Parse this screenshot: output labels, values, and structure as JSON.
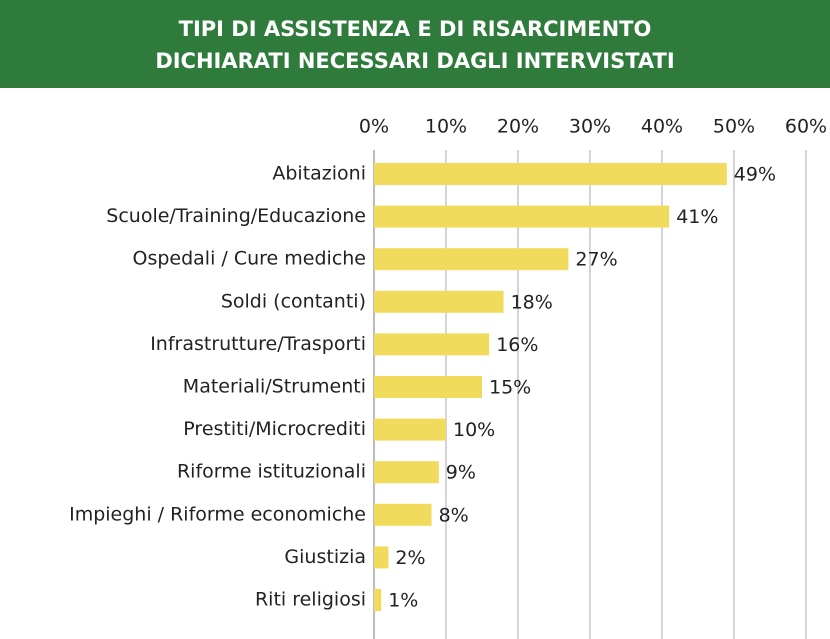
{
  "chart_data": {
    "type": "hbar",
    "title": [
      "TIPI DI ASSISTENZA E DI RISARCIMENTO",
      "DICHIARATI NECESSARI DAGLI INTERVISTATI"
    ],
    "categories": [
      "Abitazioni",
      "Scuole/Training/Educazione",
      "Ospedali / Cure mediche",
      "Soldi (contanti)",
      "Infrastrutture/Trasporti",
      "Materiali/Strumenti",
      "Prestiti/Microcrediti",
      "Riforme istituzionali",
      "Impieghi / Riforme economiche",
      "Giustizia",
      "Riti religiosi"
    ],
    "values": [
      49,
      41,
      27,
      18,
      16,
      15,
      10,
      9,
      8,
      2,
      1
    ],
    "value_labels": [
      "49%",
      "41%",
      "27%",
      "18%",
      "16%",
      "15%",
      "10%",
      "9%",
      "8%",
      "2%",
      "1%"
    ],
    "color": "#f0db5c",
    "xlim": [
      0,
      60
    ],
    "xticks": [
      {
        "value": 0,
        "label": "0%"
      },
      {
        "value": 10,
        "label": "10%"
      },
      {
        "value": 20,
        "label": "20%"
      },
      {
        "value": 30,
        "label": "30%"
      },
      {
        "value": 40,
        "label": "40%"
      },
      {
        "value": 50,
        "label": "50%"
      },
      {
        "value": 60,
        "label": "60%"
      }
    ],
    "grid": true
  }
}
